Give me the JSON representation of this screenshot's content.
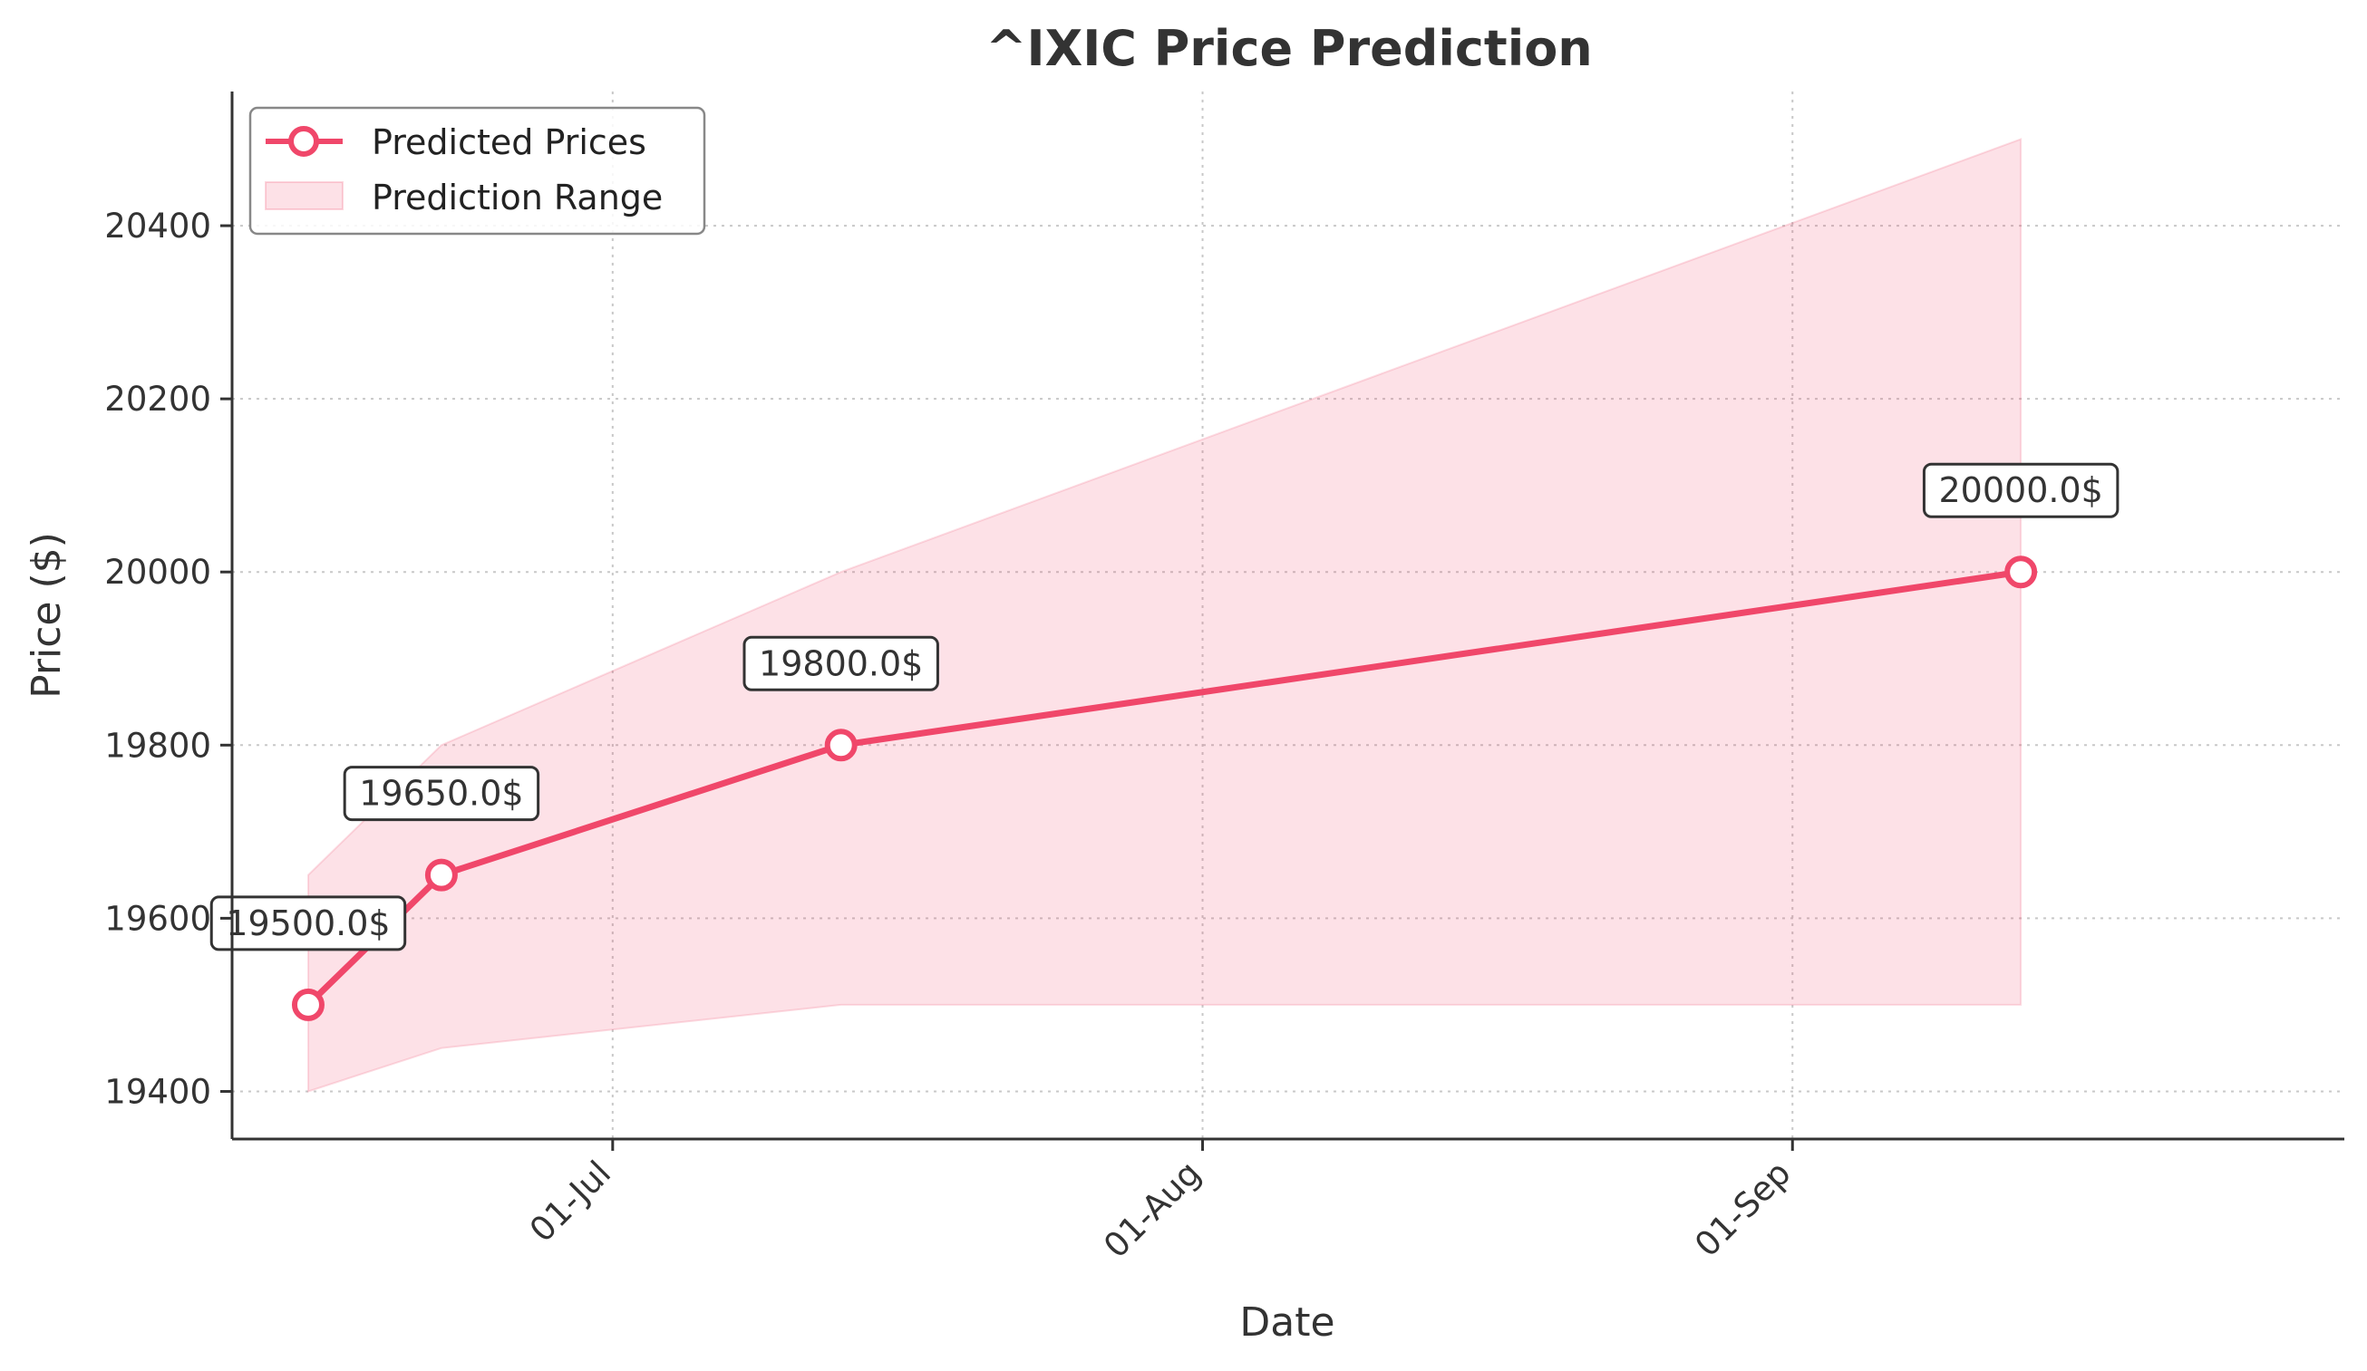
{
  "chart_data": {
    "type": "line",
    "title": "^IXIC Price Prediction",
    "xlabel": "Date",
    "ylabel": "Price ($)",
    "x_ticks": [
      {
        "date": "2024-07-01",
        "label": "01-Jul"
      },
      {
        "date": "2024-08-01",
        "label": "01-Aug"
      },
      {
        "date": "2024-09-01",
        "label": "01-Sep"
      }
    ],
    "xlim": [
      "2024-06-11",
      "2024-09-30"
    ],
    "y_ticks": [
      19400,
      19600,
      19800,
      20000,
      20200,
      20400
    ],
    "ylim": [
      19345,
      20555
    ],
    "grid": true,
    "legend_position": "top-left",
    "series": [
      {
        "name": "Predicted Prices",
        "kind": "line",
        "color": "#f0476a",
        "points": [
          {
            "x": "2024-06-15",
            "y": 19500,
            "label": "19500.0$"
          },
          {
            "x": "2024-06-22",
            "y": 19650,
            "label": "19650.0$"
          },
          {
            "x": "2024-07-13",
            "y": 19800,
            "label": "19800.0$"
          },
          {
            "x": "2024-09-13",
            "y": 20000,
            "label": "20000.0$"
          }
        ]
      },
      {
        "name": "Prediction Range",
        "kind": "band",
        "color": "#f0476a",
        "points": [
          {
            "x": "2024-06-15",
            "low": 19400,
            "high": 19650
          },
          {
            "x": "2024-06-22",
            "low": 19450,
            "high": 19800
          },
          {
            "x": "2024-07-13",
            "low": 19500,
            "high": 20000
          },
          {
            "x": "2024-09-13",
            "low": 19500,
            "high": 20500
          }
        ]
      }
    ]
  }
}
